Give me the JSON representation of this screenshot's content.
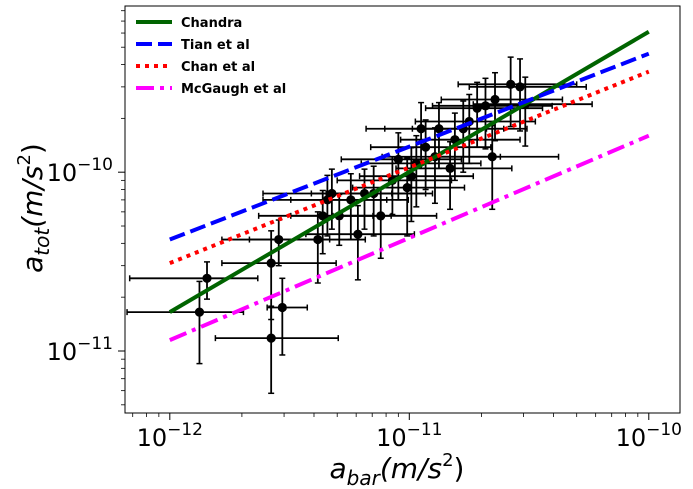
{
  "chart_data": {
    "type": "scatter",
    "xscale": "log",
    "yscale": "log",
    "xlim": [
      6.5e-13,
      1.35e-10
    ],
    "ylim": [
      4.5e-12,
      8.5e-10
    ],
    "xlabel": {
      "base": "a",
      "sub": "bar",
      "unit_open": "(m/s",
      "unit_sup": "2",
      "unit_close": ")"
    },
    "ylabel": {
      "base": "a",
      "sub": "tot",
      "unit_open": "(m/s",
      "unit_sup": "2",
      "unit_close": ")"
    },
    "x_ticks": [
      {
        "value": 1e-12,
        "base": "10",
        "exp": "−12"
      },
      {
        "value": 1e-11,
        "base": "10",
        "exp": "−11"
      },
      {
        "value": 1e-10,
        "base": "10",
        "exp": "−10"
      }
    ],
    "y_ticks": [
      {
        "value": 1e-11,
        "base": "10",
        "exp": "−11"
      },
      {
        "value": 1e-10,
        "base": "10",
        "exp": "−10"
      }
    ],
    "legend": {
      "placement": "upper-left"
    },
    "lines": [
      {
        "name": "Chandra",
        "color": "#006400",
        "style": "solid",
        "x": [
          1e-12,
          1e-10
        ],
        "y": [
          1.65e-11,
          6.1e-10
        ]
      },
      {
        "name": "Tian et al",
        "color": "#0000ff",
        "style": "dashed",
        "x": [
          1e-12,
          1e-10
        ],
        "y": [
          4.2e-11,
          4.6e-10
        ]
      },
      {
        "name": "Chan et al",
        "color": "#ff0000",
        "style": "dotted",
        "x": [
          1e-12,
          1e-10
        ],
        "y": [
          3.1e-11,
          3.65e-10
        ]
      },
      {
        "name": "McGaugh  et al",
        "color": "#ff00ff",
        "style": "dashdot",
        "x": [
          1e-12,
          1e-10
        ],
        "y": [
          1.15e-11,
          1.6e-10
        ]
      }
    ],
    "points": [
      {
        "x": 1.33e-12,
        "y": 1.65e-11,
        "xerr": [
          7e-13,
          7e-13
        ],
        "yerr": [
          8e-12,
          8e-12
        ]
      },
      {
        "x": 1.43e-12,
        "y": 2.55e-11,
        "xerr": [
          7.5e-13,
          9e-13
        ],
        "yerr": [
          6e-12,
          6e-12
        ]
      },
      {
        "x": 2.65e-12,
        "y": 1.18e-11,
        "xerr": [
          1.1e-12,
          2.4e-12
        ],
        "yerr": [
          6e-12,
          6e-12
        ]
      },
      {
        "x": 2.65e-12,
        "y": 3.1e-11,
        "xerr": [
          1e-12,
          2.3e-12
        ],
        "yerr": [
          1.6e-11,
          1.6e-11
        ]
      },
      {
        "x": 2.85e-12,
        "y": 4.2e-11,
        "xerr": [
          1.2e-12,
          1.8e-12
        ],
        "yerr": [
          1.2e-11,
          1.2e-11
        ]
      },
      {
        "x": 2.95e-12,
        "y": 1.75e-11,
        "xerr": [
          4e-13,
          8e-13
        ],
        "yerr": [
          8e-12,
          8e-12
        ]
      },
      {
        "x": 4.15e-12,
        "y": 4.2e-11,
        "xerr": [
          2e-12,
          2.4e-12
        ],
        "yerr": [
          1.8e-11,
          1.8e-11
        ]
      },
      {
        "x": 4.35e-12,
        "y": 5.7e-11,
        "xerr": [
          2e-12,
          2.7e-12
        ],
        "yerr": [
          2.2e-11,
          2.2e-11
        ]
      },
      {
        "x": 4.55e-12,
        "y": 7e-11,
        "xerr": [
          2.1e-12,
          3.5e-12
        ],
        "yerr": [
          2.6e-11,
          2.6e-11
        ]
      },
      {
        "x": 4.75e-12,
        "y": 7.6e-11,
        "xerr": [
          2.3e-12,
          3.7e-12
        ],
        "yerr": [
          2.8e-11,
          2.8e-11
        ]
      },
      {
        "x": 5.1e-12,
        "y": 5.7e-11,
        "xerr": [
          1.9e-12,
          3.3e-12
        ],
        "yerr": [
          1.8e-11,
          1.8e-11
        ]
      },
      {
        "x": 5.7e-12,
        "y": 7e-11,
        "xerr": [
          2.5e-12,
          4.2e-12
        ],
        "yerr": [
          2.8e-11,
          2.8e-11
        ]
      },
      {
        "x": 6.1e-12,
        "y": 4.5e-11,
        "xerr": [
          2.4e-12,
          4.4e-12
        ],
        "yerr": [
          2e-11,
          2e-11
        ]
      },
      {
        "x": 6.5e-12,
        "y": 7.6e-11,
        "xerr": [
          2.6e-12,
          5.2e-12
        ],
        "yerr": [
          2.8e-11,
          2.8e-11
        ]
      },
      {
        "x": 7.1e-12,
        "y": 7.6e-11,
        "xerr": [
          2.6e-12,
          5.4e-12
        ],
        "yerr": [
          3.2e-11,
          3.2e-11
        ]
      },
      {
        "x": 7.6e-12,
        "y": 5.7e-11,
        "xerr": [
          2.8e-12,
          5.4e-12
        ],
        "yerr": [
          2.4e-11,
          2.4e-11
        ]
      },
      {
        "x": 8.5e-12,
        "y": 9e-11,
        "xerr": [
          3.5e-12,
          6.5e-12
        ],
        "yerr": [
          3.2e-11,
          3.2e-11
        ]
      },
      {
        "x": 9e-12,
        "y": 1.18e-10,
        "xerr": [
          3.8e-12,
          7.5e-12
        ],
        "yerr": [
          4.8e-11,
          4.8e-11
        ]
      },
      {
        "x": 9.8e-12,
        "y": 8.2e-11,
        "xerr": [
          4e-12,
          7.2e-12
        ],
        "yerr": [
          3.8e-11,
          3.8e-11
        ]
      },
      {
        "x": 1.02e-11,
        "y": 9.5e-11,
        "xerr": [
          4e-12,
          8.3e-12
        ],
        "yerr": [
          4.2e-11,
          4.2e-11
        ]
      },
      {
        "x": 1.07e-11,
        "y": 1.12e-10,
        "xerr": [
          4.4e-12,
          9.2e-12
        ],
        "yerr": [
          4.8e-11,
          4.8e-11
        ]
      },
      {
        "x": 1.12e-11,
        "y": 1.75e-10,
        "xerr": [
          4.6e-12,
          9.8e-12
        ],
        "yerr": [
          7e-11,
          7e-11
        ]
      },
      {
        "x": 1.17e-11,
        "y": 1.38e-10,
        "xerr": [
          4.8e-12,
          1.02e-11
        ],
        "yerr": [
          5.8e-11,
          5.8e-11
        ]
      },
      {
        "x": 1.28e-11,
        "y": 1.22e-10,
        "xerr": [
          5.1e-12,
          1.12e-11
        ],
        "yerr": [
          5.5e-11,
          5.5e-11
        ]
      },
      {
        "x": 1.33e-11,
        "y": 1.75e-10,
        "xerr": [
          5.4e-12,
          1.15e-11
        ],
        "yerr": [
          7e-11,
          7e-11
        ]
      },
      {
        "x": 1.48e-11,
        "y": 1.05e-10,
        "xerr": [
          6e-12,
          1.2e-11
        ],
        "yerr": [
          4.3e-11,
          4.3e-11
        ]
      },
      {
        "x": 1.55e-11,
        "y": 1.52e-10,
        "xerr": [
          6.3e-12,
          1.35e-11
        ],
        "yerr": [
          6.2e-11,
          6.2e-11
        ]
      },
      {
        "x": 1.68e-11,
        "y": 1.75e-10,
        "xerr": [
          6.5e-12,
          1.42e-11
        ],
        "yerr": [
          7.5e-11,
          7.5e-11
        ]
      },
      {
        "x": 1.78e-11,
        "y": 1.92e-10,
        "xerr": [
          7.2e-12,
          1.58e-11
        ],
        "yerr": [
          8e-11,
          8e-11
        ]
      },
      {
        "x": 1.92e-11,
        "y": 2.28e-10,
        "xerr": [
          7.5e-12,
          1.68e-11
        ],
        "yerr": [
          9e-11,
          9e-11
        ]
      },
      {
        "x": 2.08e-11,
        "y": 2.35e-10,
        "xerr": [
          8.3e-12,
          1.87e-11
        ],
        "yerr": [
          1e-10,
          1e-10
        ]
      },
      {
        "x": 2.22e-11,
        "y": 1.22e-10,
        "xerr": [
          8.8e-12,
          1.98e-11
        ],
        "yerr": [
          6e-11,
          6e-11
        ]
      },
      {
        "x": 2.28e-11,
        "y": 2.55e-10,
        "xerr": [
          9.2e-12,
          2.08e-11
        ],
        "yerr": [
          1.05e-10,
          1.05e-10
        ]
      },
      {
        "x": 2.65e-11,
        "y": 3.1e-10,
        "xerr": [
          1.05e-11,
          2.35e-11
        ],
        "yerr": [
          1.3e-10,
          1.3e-10
        ]
      },
      {
        "x": 2.9e-11,
        "y": 3e-10,
        "xerr": [
          1.12e-11,
          2.58e-11
        ],
        "yerr": [
          1.3e-10,
          1.3e-10
        ]
      },
      {
        "x": 3.05e-11,
        "y": 2.4e-10,
        "xerr": [
          1.2e-11,
          2.75e-11
        ],
        "yerr": [
          1e-10,
          1e-10
        ]
      }
    ]
  }
}
